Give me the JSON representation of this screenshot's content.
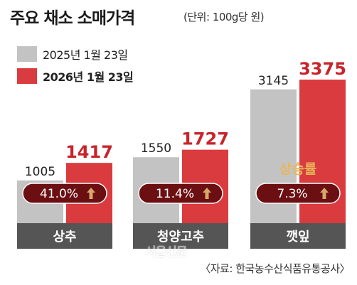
{
  "header": {
    "title": "주요 채소 소매가격",
    "unit": "(단위: 100g당 원)"
  },
  "footer": {
    "source": "〈자료: 한국농수산식품유통공사〉",
    "watermark": "서울신문"
  },
  "colors": {
    "series_2025": "#c3c3c3",
    "series_2026": "#d93b3f",
    "value_2026_text": "#c8242b",
    "badge": "#6b0f12",
    "arrow": "#d6a76a",
    "category_band": "#555555",
    "rate_label": "#e8b75a"
  },
  "chart_data": {
    "type": "bar",
    "title": "주요 채소 소매가격",
    "unit": "(단위: 100g당 원)",
    "categories": [
      "상추",
      "청양고추",
      "깻잎"
    ],
    "series": [
      {
        "name": "2025년 1월 23일",
        "values": [
          1005,
          1550,
          3145
        ]
      },
      {
        "name": "2026년 1월 23일",
        "values": [
          1417,
          1727,
          3375
        ]
      }
    ],
    "increase_label": "상승률",
    "increase_rates": [
      "41.0%",
      "11.4%",
      "7.3%"
    ],
    "ylim": [
      0,
      3375
    ],
    "legend_position": "top-left",
    "grid": false
  }
}
